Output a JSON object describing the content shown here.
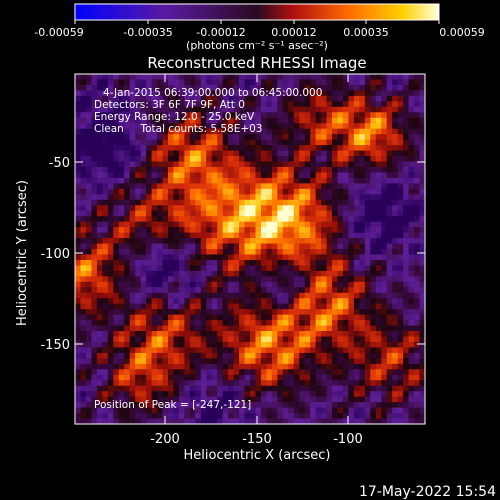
{
  "colorbar": {
    "tick_labels": [
      "-0.00059",
      "-0.00035",
      "-0.00012",
      "0.00012",
      "0.00035",
      "0.00059"
    ],
    "unit_label": "(photons cm⁻² s⁻¹ asec⁻²)",
    "range": [
      -0.00059,
      0.00059
    ]
  },
  "chart_data": {
    "type": "heatmap",
    "title": "Reconstructed RHESSI Image",
    "xlabel": "Heliocentric X (arcsec)",
    "ylabel": "Heliocentric Y (arcsec)",
    "xticks": [
      "-200",
      "-150",
      "-100"
    ],
    "yticks": [
      "-50",
      "-100",
      "-150"
    ],
    "xlim": [
      -248,
      -52
    ],
    "ylim": [
      -193,
      -18
    ],
    "annotations": {
      "time_range": "4-Jan-2015 06:39:00.000 to 06:45:00.000",
      "detectors": "Detectors: 3F 6F 7F 9F, Att 0",
      "energy": "Energy Range: 12.0 - 25.0 keV",
      "clean": "Clean     Total counts: 5.58E+03",
      "peak": "Position of Peak = [-247,-121]"
    },
    "peak": [
      -247,
      -121
    ],
    "total_counts": 5580,
    "energy_range_kev": [
      12.0,
      25.0
    ]
  },
  "footer": {
    "timestamp": "17-May-2022 15:54"
  }
}
